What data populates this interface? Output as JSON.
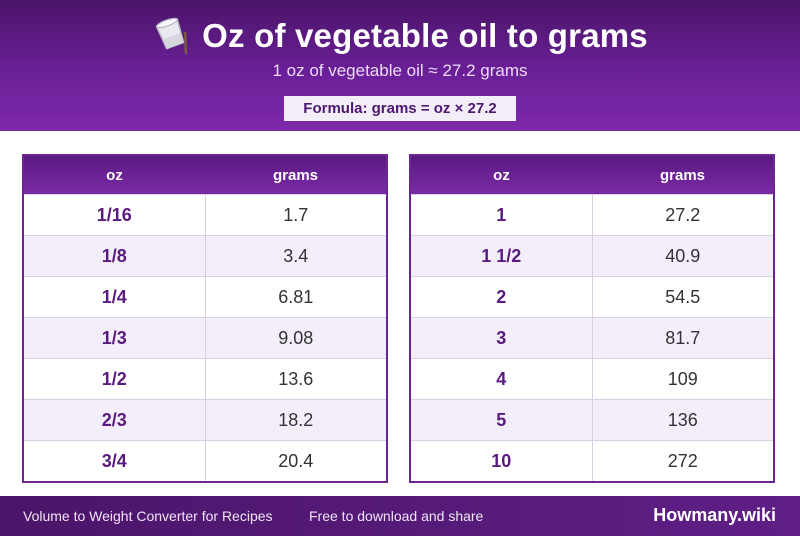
{
  "header": {
    "title": "Oz of vegetable oil to grams",
    "subtitle": "1 oz of vegetable oil ≈ 27.2 grams",
    "formula": "Formula: grams = oz × 27.2",
    "icon": "pouring-cup-icon"
  },
  "tables": [
    {
      "col_oz": "oz",
      "col_grams": "grams",
      "rows": [
        {
          "oz": "1/16",
          "grams": "1.7"
        },
        {
          "oz": "1/8",
          "grams": "3.4"
        },
        {
          "oz": "1/4",
          "grams": "6.81"
        },
        {
          "oz": "1/3",
          "grams": "9.08"
        },
        {
          "oz": "1/2",
          "grams": "13.6"
        },
        {
          "oz": "2/3",
          "grams": "18.2"
        },
        {
          "oz": "3/4",
          "grams": "20.4"
        }
      ]
    },
    {
      "col_oz": "oz",
      "col_grams": "grams",
      "rows": [
        {
          "oz": "1",
          "grams": "27.2"
        },
        {
          "oz": "1 1/2",
          "grams": "40.9"
        },
        {
          "oz": "2",
          "grams": "54.5"
        },
        {
          "oz": "3",
          "grams": "81.7"
        },
        {
          "oz": "4",
          "grams": "109"
        },
        {
          "oz": "5",
          "grams": "136"
        },
        {
          "oz": "10",
          "grams": "272"
        }
      ]
    }
  ],
  "footer": {
    "left_text": "Volume to Weight Converter for Recipes",
    "middle_text": "Free to download and share",
    "brand": "Howmany.wiki"
  },
  "colors": {
    "primary": "#6a1f98",
    "dark": "#4b1569",
    "row_alt": "#f4eefa"
  }
}
